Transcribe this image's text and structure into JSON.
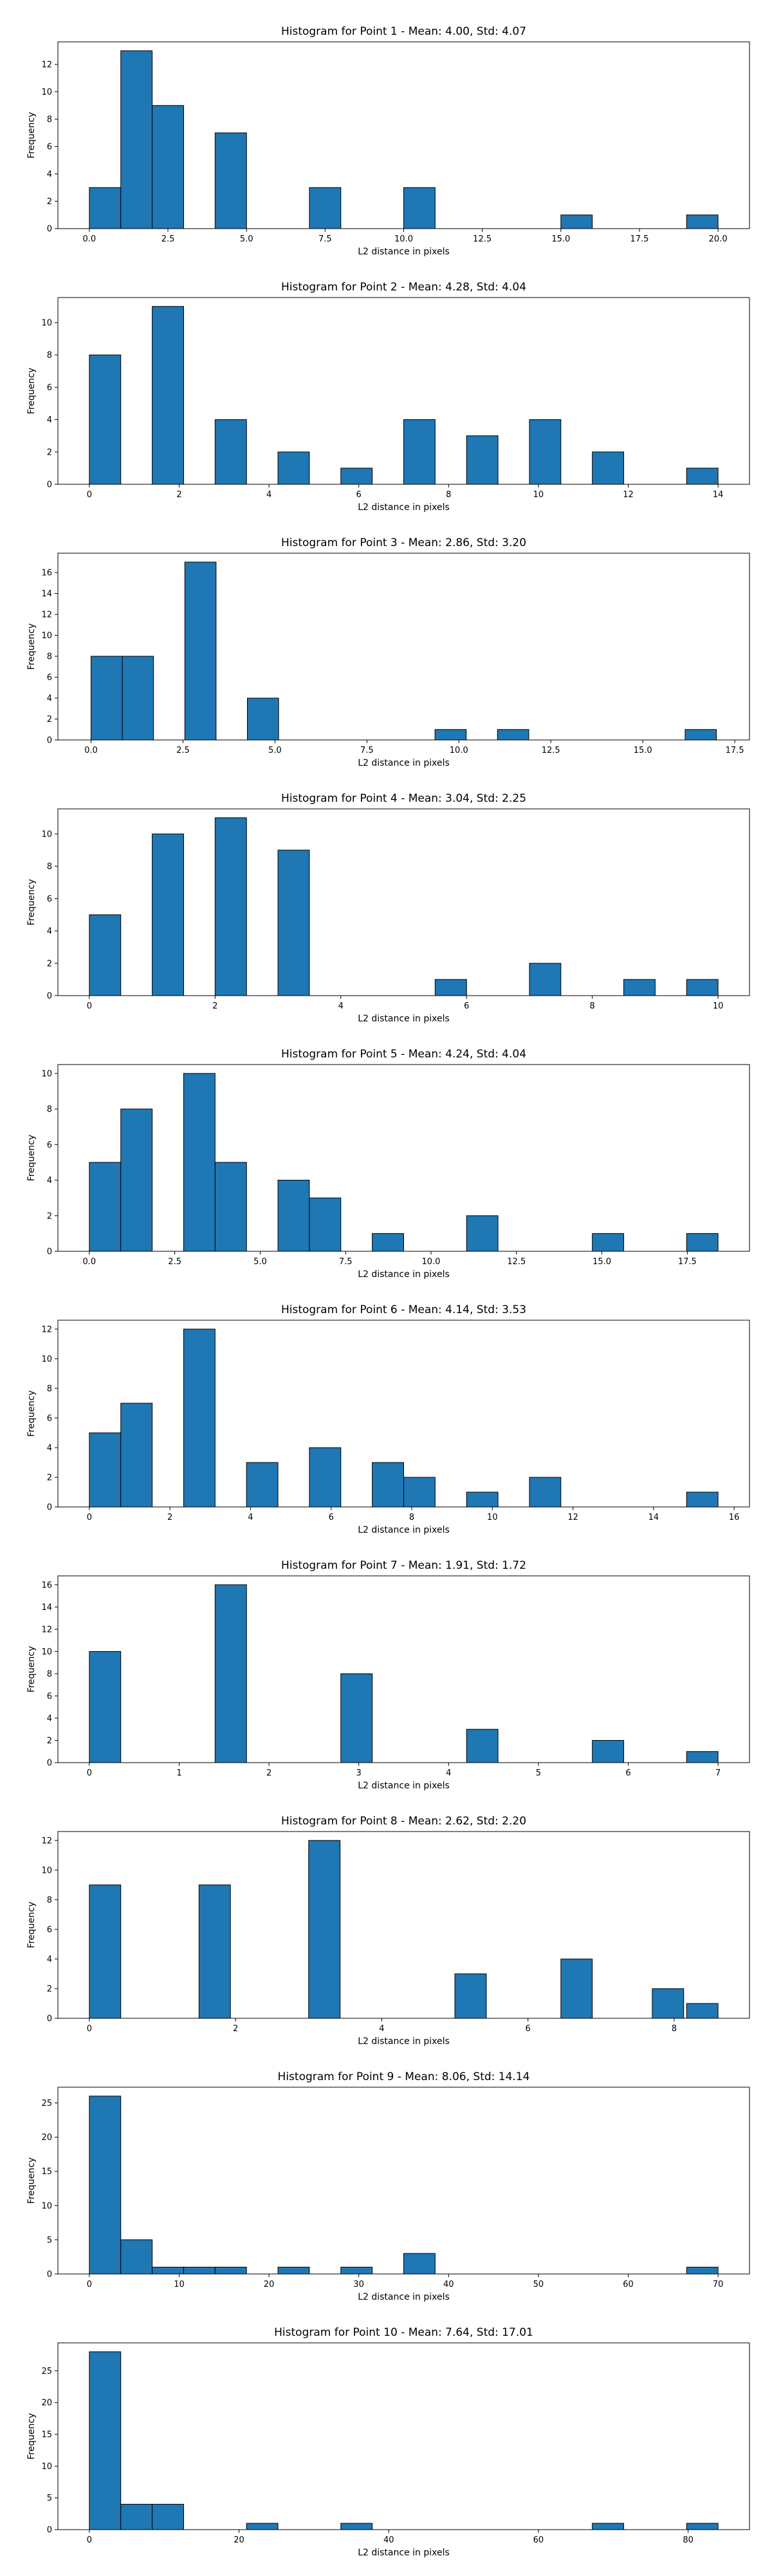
{
  "figure": {
    "bar_color": "#1f77b4",
    "edge_color": "#000000"
  },
  "chart_data": [
    {
      "type": "bar",
      "title": "Histogram for Point 1 - Mean: 4.00, Std: 4.07",
      "xlabel": "L2 distance in pixels",
      "ylabel": "Frequency",
      "xlim": [
        -1,
        21
      ],
      "ylim": [
        0,
        13.65
      ],
      "xticks": [
        "0.0",
        "2.5",
        "5.0",
        "7.5",
        "10.0",
        "12.5",
        "15.0",
        "17.5",
        "20.0"
      ],
      "xtick_values": [
        0,
        2.5,
        5,
        7.5,
        10,
        12.5,
        15,
        17.5,
        20
      ],
      "yticks": [
        0,
        2,
        4,
        6,
        8,
        10,
        12
      ],
      "bins": [
        [
          0,
          1,
          3
        ],
        [
          1,
          2,
          13
        ],
        [
          2,
          3,
          9
        ],
        [
          4,
          5,
          7
        ],
        [
          7,
          8,
          3
        ],
        [
          10,
          11,
          3
        ],
        [
          15,
          16,
          1
        ],
        [
          19,
          20,
          1
        ]
      ]
    },
    {
      "type": "bar",
      "title": "Histogram for Point 2 - Mean: 4.28, Std: 4.04",
      "xlabel": "L2 distance in pixels",
      "ylabel": "Frequency",
      "xlim": [
        -0.7,
        14.7
      ],
      "ylim": [
        0,
        11.55
      ],
      "xticks": [
        "0",
        "2",
        "4",
        "6",
        "8",
        "10",
        "12",
        "14"
      ],
      "xtick_values": [
        0,
        2,
        4,
        6,
        8,
        10,
        12,
        14
      ],
      "yticks": [
        0,
        2,
        4,
        6,
        8,
        10
      ],
      "bins": [
        [
          0,
          0.7,
          8
        ],
        [
          1.4,
          2.1,
          11
        ],
        [
          2.8,
          3.5,
          4
        ],
        [
          3.5,
          4.2,
          0
        ],
        [
          4.2,
          4.9,
          2
        ],
        [
          5.6,
          6.3,
          1
        ],
        [
          7,
          7.7,
          4
        ],
        [
          8.4,
          9.1,
          3
        ],
        [
          9.8,
          10.5,
          4
        ],
        [
          11.2,
          11.9,
          2
        ],
        [
          13.3,
          14,
          1
        ]
      ]
    },
    {
      "type": "bar",
      "title": "Histogram for Point 3 - Mean: 2.86, Std: 3.20",
      "xlabel": "L2 distance in pixels",
      "ylabel": "Frequency",
      "xlim": [
        -0.9,
        17.9
      ],
      "ylim": [
        0,
        17.85
      ],
      "xticks": [
        "0.0",
        "2.5",
        "5.0",
        "7.5",
        "10.0",
        "12.5",
        "15.0",
        "17.5"
      ],
      "xtick_values": [
        0,
        2.5,
        5,
        7.5,
        10,
        12.5,
        15,
        17.5
      ],
      "yticks": [
        0,
        2,
        4,
        6,
        8,
        10,
        12,
        14,
        16
      ],
      "bins": [
        [
          0,
          0.85,
          8
        ],
        [
          0.85,
          1.7,
          8
        ],
        [
          2.55,
          3.4,
          17
        ],
        [
          4.25,
          5.1,
          4
        ],
        [
          9.35,
          10.2,
          1
        ],
        [
          11.05,
          11.9,
          1
        ],
        [
          16.15,
          17,
          1
        ]
      ]
    },
    {
      "type": "bar",
      "title": "Histogram for Point 4 - Mean: 3.04, Std: 2.25",
      "xlabel": "L2 distance in pixels",
      "ylabel": "Frequency",
      "xlim": [
        -0.5,
        10.5
      ],
      "ylim": [
        0,
        11.55
      ],
      "xticks": [
        "0",
        "2",
        "4",
        "6",
        "8",
        "10"
      ],
      "xtick_values": [
        0,
        2,
        4,
        6,
        8,
        10
      ],
      "yticks": [
        0,
        2,
        4,
        6,
        8,
        10
      ],
      "bins": [
        [
          0,
          0.5,
          5
        ],
        [
          1,
          1.5,
          10
        ],
        [
          2,
          2.5,
          11
        ],
        [
          3,
          3.5,
          9
        ],
        [
          5.5,
          6,
          1
        ],
        [
          7,
          7.5,
          2
        ],
        [
          8.5,
          9,
          1
        ],
        [
          9.5,
          10,
          1
        ]
      ]
    },
    {
      "type": "bar",
      "title": "Histogram for Point 5 - Mean: 4.24, Std: 4.04",
      "xlabel": "L2 distance in pixels",
      "ylabel": "Frequency",
      "xlim": [
        -0.92,
        19.32
      ],
      "ylim": [
        0,
        10.5
      ],
      "xticks": [
        "0.0",
        "2.5",
        "5.0",
        "7.5",
        "10.0",
        "12.5",
        "15.0",
        "17.5"
      ],
      "xtick_values": [
        0,
        2.5,
        5,
        7.5,
        10,
        12.5,
        15,
        17.5
      ],
      "yticks": [
        0,
        2,
        4,
        6,
        8,
        10
      ],
      "bins": [
        [
          0,
          0.92,
          5
        ],
        [
          0.92,
          1.84,
          8
        ],
        [
          2.76,
          3.68,
          10
        ],
        [
          3.68,
          4.6,
          5
        ],
        [
          5.52,
          6.44,
          4
        ],
        [
          6.44,
          7.36,
          3
        ],
        [
          8.28,
          9.2,
          1
        ],
        [
          11.04,
          11.96,
          2
        ],
        [
          14.72,
          15.64,
          1
        ],
        [
          17.48,
          18.4,
          1
        ]
      ]
    },
    {
      "type": "bar",
      "title": "Histogram for Point 6 - Mean: 4.14, Std: 3.53",
      "xlabel": "L2 distance in pixels",
      "ylabel": "Frequency",
      "xlim": [
        -0.78,
        16.38
      ],
      "ylim": [
        0,
        12.6
      ],
      "xticks": [
        "0",
        "2",
        "4",
        "6",
        "8",
        "10",
        "12",
        "14",
        "16"
      ],
      "xtick_values": [
        0,
        2,
        4,
        6,
        8,
        10,
        12,
        14,
        16
      ],
      "yticks": [
        0,
        2,
        4,
        6,
        8,
        10,
        12
      ],
      "bins": [
        [
          0,
          0.78,
          5
        ],
        [
          0.78,
          1.56,
          7
        ],
        [
          2.34,
          3.12,
          12
        ],
        [
          3.9,
          4.68,
          3
        ],
        [
          5.46,
          6.24,
          4
        ],
        [
          7.02,
          7.8,
          3
        ],
        [
          7.8,
          8.58,
          2
        ],
        [
          9.36,
          10.14,
          1
        ],
        [
          10.92,
          11.7,
          2
        ],
        [
          14.82,
          15.6,
          1
        ]
      ]
    },
    {
      "type": "bar",
      "title": "Histogram for Point 7 - Mean: 1.91, Std: 1.72",
      "xlabel": "L2 distance in pixels",
      "ylabel": "Frequency",
      "xlim": [
        -0.35,
        7.35
      ],
      "ylim": [
        0,
        16.8
      ],
      "xticks": [
        "0",
        "1",
        "2",
        "3",
        "4",
        "5",
        "6",
        "7"
      ],
      "xtick_values": [
        0,
        1,
        2,
        3,
        4,
        5,
        6,
        7
      ],
      "yticks": [
        0,
        2,
        4,
        6,
        8,
        10,
        12,
        14,
        16
      ],
      "bins": [
        [
          0,
          0.35,
          10
        ],
        [
          1.4,
          1.75,
          16
        ],
        [
          2.8,
          3.15,
          8
        ],
        [
          4.2,
          4.55,
          3
        ],
        [
          5.6,
          5.95,
          2
        ],
        [
          6.65,
          7,
          1
        ]
      ]
    },
    {
      "type": "bar",
      "title": "Histogram for Point 8 - Mean: 2.62, Std: 2.20",
      "xlabel": "L2 distance in pixels",
      "ylabel": "Frequency",
      "xlim": [
        -0.43,
        9.03
      ],
      "ylim": [
        0,
        12.6
      ],
      "xticks": [
        "0",
        "2",
        "4",
        "6",
        "8"
      ],
      "xtick_values": [
        0,
        2,
        4,
        6,
        8
      ],
      "yticks": [
        0,
        2,
        4,
        6,
        8,
        10,
        12
      ],
      "bins": [
        [
          0,
          0.43,
          9
        ],
        [
          1.5,
          1.93,
          9
        ],
        [
          3,
          3.43,
          12
        ],
        [
          5,
          5.43,
          3
        ],
        [
          6.45,
          6.88,
          4
        ],
        [
          7.7,
          8.13,
          2
        ],
        [
          8.17,
          8.6,
          1
        ]
      ]
    },
    {
      "type": "bar",
      "title": "Histogram for Point 9 - Mean: 8.06, Std: 14.14",
      "xlabel": "L2 distance in pixels",
      "ylabel": "Frequency",
      "xlim": [
        -3.5,
        73.5
      ],
      "ylim": [
        0,
        27.3
      ],
      "xticks": [
        "0",
        "10",
        "20",
        "30",
        "40",
        "50",
        "60",
        "70"
      ],
      "xtick_values": [
        0,
        10,
        20,
        30,
        40,
        50,
        60,
        70
      ],
      "yticks": [
        0,
        5,
        10,
        15,
        20,
        25
      ],
      "bins": [
        [
          0,
          3.5,
          26
        ],
        [
          3.5,
          7,
          5
        ],
        [
          7,
          10.5,
          1
        ],
        [
          10.5,
          14,
          1
        ],
        [
          14,
          17.5,
          1
        ],
        [
          21,
          24.5,
          1
        ],
        [
          28,
          31.5,
          1
        ],
        [
          35,
          38.5,
          3
        ],
        [
          66.5,
          70,
          1
        ]
      ]
    },
    {
      "type": "bar",
      "title": "Histogram for Point 10 - Mean: 7.64, Std: 17.01",
      "xlabel": "L2 distance in pixels",
      "ylabel": "Frequency",
      "xlim": [
        -4.2,
        88.2
      ],
      "ylim": [
        0,
        29.4
      ],
      "xticks": [
        "0",
        "20",
        "40",
        "60",
        "80"
      ],
      "xtick_values": [
        0,
        20,
        40,
        60,
        80
      ],
      "yticks": [
        0,
        5,
        10,
        15,
        20,
        25
      ],
      "bins": [
        [
          0,
          4.2,
          28
        ],
        [
          4.2,
          8.4,
          4
        ],
        [
          8.4,
          12.6,
          4
        ],
        [
          21,
          25.2,
          1
        ],
        [
          33.6,
          37.8,
          1
        ],
        [
          67.2,
          71.4,
          1
        ],
        [
          79.8,
          84,
          1
        ]
      ]
    }
  ]
}
